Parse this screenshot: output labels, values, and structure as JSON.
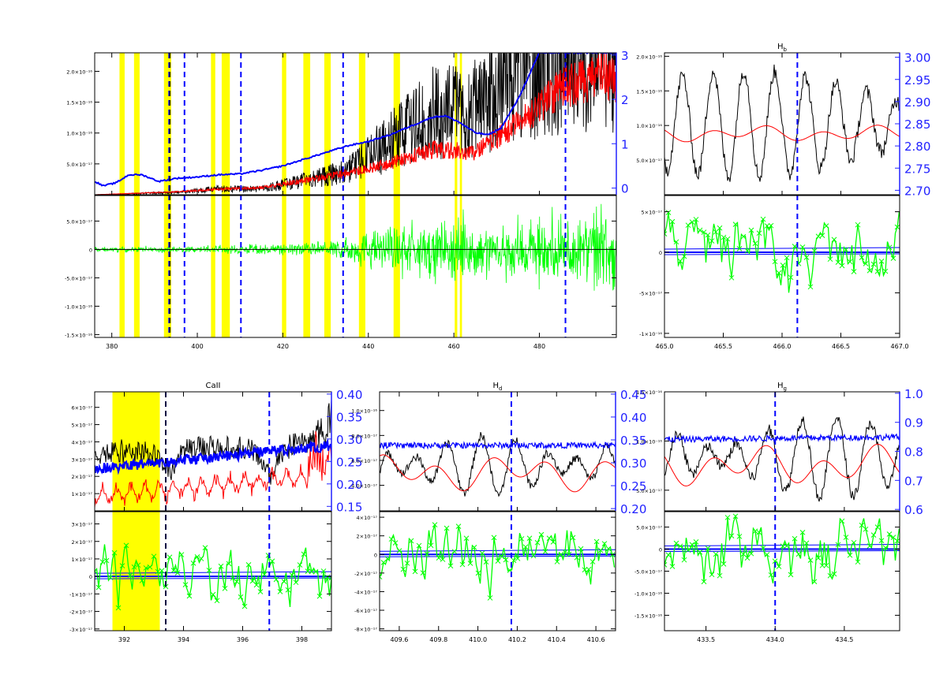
{
  "colors": {
    "spectrum": "#000000",
    "model": "#ff0000",
    "continuum": "#0000ff",
    "residual": "#00ff00",
    "mask": "#ffff00",
    "marker": "#0000ff",
    "axis_right": "#2222ff"
  },
  "chart_data": [
    {
      "id": "overview",
      "type": "line",
      "title": "",
      "xlim": [
        376,
        498
      ],
      "top": {
        "ylim": [
          0,
          2.3e-16
        ],
        "yticks": [
          5e-17,
          1e-16,
          1.5e-16,
          2e-16
        ],
        "yticklabels": [
          "5.0×10⁻¹⁷",
          "1.0×10⁻¹⁶",
          "1.5×10⁻¹⁶",
          "2.0×10⁻¹⁶"
        ],
        "y2lim": [
          -0.15,
          3.05
        ],
        "y2ticks": [
          0,
          1,
          2,
          3
        ],
        "y2ticklabels": [
          "0",
          "1",
          "2",
          "3"
        ]
      },
      "bottom": {
        "ylim": [
          -1.55e-16,
          9.5e-17
        ],
        "yticks": [
          -1.5e-16,
          -1e-16,
          -5e-17,
          0,
          5e-17
        ],
        "yticklabels": [
          "-1.5×10⁻¹⁶",
          "-1.0×10⁻¹⁶",
          "-5.0×10⁻¹⁷",
          "0",
          "5.0×10⁻¹⁷"
        ]
      },
      "xticks": [
        380,
        400,
        420,
        440,
        460,
        480
      ],
      "xticklabels": [
        "380",
        "400",
        "420",
        "440",
        "460",
        "480"
      ],
      "mask_bands": [
        [
          381.8,
          383.0
        ],
        [
          385.2,
          386.5
        ],
        [
          392.2,
          393.9
        ],
        [
          403.2,
          404.2
        ],
        [
          405.7,
          407.6
        ],
        [
          419.8,
          420.8
        ],
        [
          424.8,
          426.4
        ],
        [
          429.7,
          431.2
        ],
        [
          437.8,
          439.3
        ],
        [
          445.9,
          447.4
        ],
        [
          460.2,
          460.8
        ],
        [
          461.4,
          461.9
        ]
      ],
      "markers": [
        393.4,
        397.0,
        410.2,
        434.1,
        486.1
      ],
      "continuum": [
        [
          376,
          0.15
        ],
        [
          378,
          0.05
        ],
        [
          381,
          0.12
        ],
        [
          384,
          0.3
        ],
        [
          387,
          0.3
        ],
        [
          391,
          0.15
        ],
        [
          395,
          0.22
        ],
        [
          400,
          0.25
        ],
        [
          405,
          0.3
        ],
        [
          410,
          0.32
        ],
        [
          415,
          0.4
        ],
        [
          420,
          0.5
        ],
        [
          425,
          0.65
        ],
        [
          430,
          0.8
        ],
        [
          435,
          0.95
        ],
        [
          440,
          1.05
        ],
        [
          445,
          1.2
        ],
        [
          450,
          1.4
        ],
        [
          455,
          1.6
        ],
        [
          458,
          1.63
        ],
        [
          461,
          1.5
        ],
        [
          465,
          1.25
        ],
        [
          468,
          1.2
        ],
        [
          471,
          1.35
        ],
        [
          475,
          2.0
        ],
        [
          480,
          3.05
        ]
      ],
      "series": [
        {
          "name": "",
          "role": "spectrum",
          "envelope": [
            [
              376,
              0.0
            ],
            [
              395,
              0.02
            ],
            [
              405,
              0.05
            ],
            [
              415,
              0.05
            ],
            [
              425,
              0.12
            ],
            [
              435,
              0.2
            ],
            [
              445,
              0.45
            ],
            [
              455,
              0.7
            ],
            [
              465,
              0.75
            ],
            [
              475,
              1.0
            ],
            [
              485,
              1.2
            ],
            [
              495,
              1.25
            ],
            [
              498,
              1.2
            ]
          ]
        },
        {
          "name": "",
          "role": "model",
          "envelope": [
            [
              376,
              0.0
            ],
            [
              395,
              0.02
            ],
            [
              405,
              0.04
            ],
            [
              415,
              0.05
            ],
            [
              425,
              0.1
            ],
            [
              435,
              0.15
            ],
            [
              445,
              0.22
            ],
            [
              455,
              0.32
            ],
            [
              465,
              0.3
            ],
            [
              475,
              0.5
            ],
            [
              485,
              0.75
            ],
            [
              495,
              0.85
            ],
            [
              498,
              0.8
            ]
          ]
        },
        {
          "name": "",
          "role": "residual",
          "amplitude": [
            [
              376,
              0.05
            ],
            [
              395,
              0.06
            ],
            [
              405,
              0.08
            ],
            [
              420,
              0.12
            ],
            [
              430,
              0.15
            ],
            [
              440,
              0.38
            ],
            [
              450,
              0.5
            ],
            [
              460,
              0.65
            ],
            [
              470,
              0.6
            ],
            [
              480,
              0.75
            ],
            [
              490,
              0.8
            ],
            [
              498,
              0.8
            ]
          ]
        }
      ]
    },
    {
      "id": "hb",
      "type": "line",
      "title": "H",
      "title_sub": "b",
      "xlim": [
        465.0,
        467.0
      ],
      "top": {
        "ylim": [
          0,
          2.05e-16
        ],
        "yticks": [
          5e-17,
          1e-16,
          1.5e-16,
          2e-16
        ],
        "yticklabels": [
          "5.0×10⁻¹⁷",
          "1.0×10⁻¹⁶",
          "1.5×10⁻¹⁶",
          "2.0×10⁻¹⁶"
        ],
        "y2lim": [
          2.69,
          3.01
        ],
        "y2ticks": [
          2.7,
          2.75,
          2.8,
          2.85,
          2.9,
          2.95,
          3.0
        ],
        "y2ticklabels": [
          "2.70",
          "2.75",
          "2.80",
          "2.85",
          "2.90",
          "2.95",
          "3.00"
        ]
      },
      "bottom": {
        "ylim": [
          -1.05e-16,
          7e-17
        ],
        "yticks": [
          -1e-16,
          -5e-17,
          0,
          5e-17
        ],
        "yticklabels": [
          "-1×10⁻¹⁶",
          "-5×10⁻¹⁷",
          "0",
          "5×10⁻¹⁷"
        ]
      },
      "xticks": [
        465.0,
        465.5,
        466.0,
        466.5,
        467.0
      ],
      "xticklabels": [
        "465.0",
        "465.5",
        "466.0",
        "466.5",
        "467.0"
      ],
      "markers": [
        466.13
      ],
      "mask_bands": [],
      "continuum": []
    },
    {
      "id": "caii",
      "type": "line",
      "title": "CaII",
      "title_sub": "",
      "xlim": [
        391.0,
        399.0
      ],
      "top": {
        "ylim": [
          0,
          6.9e-17
        ],
        "yticks": [
          1e-17,
          2e-17,
          3e-17,
          4e-17,
          5e-17,
          6e-17
        ],
        "yticklabels": [
          "1×10⁻¹⁷",
          "2×10⁻¹⁷",
          "3×10⁻¹⁷",
          "4×10⁻¹⁷",
          "5×10⁻¹⁷",
          "6×10⁻¹⁷"
        ],
        "y2lim": [
          0.14,
          0.405
        ],
        "y2ticks": [
          0.15,
          0.2,
          0.25,
          0.3,
          0.35,
          0.4
        ],
        "y2ticklabels": [
          "0.15",
          "0.20",
          "0.25",
          "0.30",
          "0.35",
          "0.40"
        ]
      },
      "bottom": {
        "ylim": [
          -3.1e-17,
          3.7e-17
        ],
        "yticks": [
          -3e-17,
          -2e-17,
          -1e-17,
          0,
          1e-17,
          2e-17,
          3e-17
        ],
        "yticklabels": [
          "-3×10⁻¹⁷",
          "-2×10⁻¹⁷",
          "-1×10⁻¹⁷",
          "0",
          "1×10⁻¹⁷",
          "2×10⁻¹⁷",
          "3×10⁻¹⁷"
        ]
      },
      "xticks": [
        392,
        394,
        396,
        398
      ],
      "xticklabels": [
        "392",
        "394",
        "396",
        "398"
      ],
      "mask_bands": [
        [
          391.6,
          393.2
        ]
      ],
      "markers": [
        393.4,
        396.9
      ],
      "continuum": []
    },
    {
      "id": "hd",
      "type": "line",
      "title": "H",
      "title_sub": "d",
      "xlim": [
        409.5,
        410.7
      ],
      "top": {
        "ylim": [
          1.95e-17,
          1.15e-16
        ],
        "yticks": [
          4e-17,
          6e-17,
          8e-17,
          1e-16
        ],
        "yticklabels": [
          "4.0×10⁻¹⁷",
          "6.0×10⁻¹⁷",
          "8.0×10⁻¹⁷",
          "1.0×10⁻¹⁶"
        ],
        "y2lim": [
          0.195,
          0.455
        ],
        "y2ticks": [
          0.2,
          0.25,
          0.3,
          0.35,
          0.4,
          0.45
        ],
        "y2ticklabels": [
          "0.20",
          "0.25",
          "0.30",
          "0.35",
          "0.40",
          "0.45"
        ]
      },
      "bottom": {
        "ylim": [
          -8.2e-17,
          4.6e-17
        ],
        "yticks": [
          -8e-17,
          -6e-17,
          -4e-17,
          -2e-17,
          0,
          2e-17,
          4e-17
        ],
        "yticklabels": [
          "-8×10⁻¹⁷",
          "-6×10⁻¹⁷",
          "-4×10⁻¹⁷",
          "-2×10⁻¹⁷",
          "0",
          "2×10⁻¹⁷",
          "4×10⁻¹⁷"
        ]
      },
      "xticks": [
        409.6,
        409.8,
        410.0,
        410.2,
        410.4,
        410.6
      ],
      "xticklabels": [
        "409.6",
        "409.8",
        "410.0",
        "410.2",
        "410.4",
        "410.6"
      ],
      "markers": [
        410.17
      ],
      "mask_bands": [],
      "continuum": []
    },
    {
      "id": "hg",
      "type": "line",
      "title": "H",
      "title_sub": "g",
      "xlim": [
        433.2,
        434.9
      ],
      "top": {
        "ylim": [
          2.9e-17,
          1.5e-16
        ],
        "yticks": [
          5e-17,
          1e-16,
          1.5e-16
        ],
        "yticklabels": [
          "5.0×10⁻¹⁷",
          "1.0×10⁻¹⁶",
          "1.5×10⁻¹⁶"
        ],
        "y2lim": [
          0.595,
          1.005
        ],
        "y2ticks": [
          0.6,
          0.7,
          0.8,
          0.9,
          1.0
        ],
        "y2ticklabels": [
          "0.6",
          "0.7",
          "0.8",
          "0.9",
          "1.0"
        ]
      },
      "bottom": {
        "ylim": [
          -1.85e-16,
          8.5e-17
        ],
        "yticks": [
          -1.5e-16,
          -1e-16,
          -5e-17,
          0,
          5e-17
        ],
        "yticklabels": [
          "-1.5×10⁻¹⁶",
          "-1.0×10⁻¹⁶",
          "-5.0×10⁻¹⁷",
          "0",
          "5.0×10⁻¹⁷"
        ]
      },
      "xticks": [
        433.5,
        434.0,
        434.5
      ],
      "xticklabels": [
        "433.5",
        "434.0",
        "434.5"
      ],
      "markers": [
        434.0
      ],
      "mask_bands": [],
      "continuum": []
    }
  ]
}
